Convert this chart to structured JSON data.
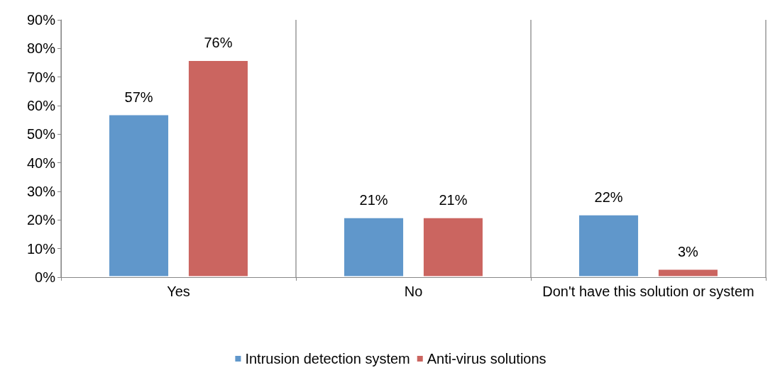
{
  "chart_data": {
    "type": "bar",
    "categories": [
      "Yes",
      "No",
      "Don't have this solution or system"
    ],
    "series": [
      {
        "name": "Intrusion detection system",
        "color": "#6097cb",
        "values": [
          57,
          21,
          22
        ],
        "value_labels": [
          "57%",
          "21%",
          "22%"
        ]
      },
      {
        "name": "Anti-virus solutions",
        "color": "#cb6560",
        "values": [
          76,
          21,
          3
        ],
        "value_labels": [
          "76%",
          "21%",
          "3%"
        ]
      }
    ],
    "ylim": [
      0,
      90
    ],
    "yticks": [
      {
        "value": 0,
        "label": "0%"
      },
      {
        "value": 10,
        "label": "10%"
      },
      {
        "value": 20,
        "label": "20%"
      },
      {
        "value": 30,
        "label": "30%"
      },
      {
        "value": 40,
        "label": "40%"
      },
      {
        "value": 50,
        "label": "50%"
      },
      {
        "value": 60,
        "label": "60%"
      },
      {
        "value": 70,
        "label": "70%"
      },
      {
        "value": 80,
        "label": "80%"
      },
      {
        "value": 90,
        "label": "90%"
      }
    ],
    "grid": "x",
    "legend": "bottom"
  }
}
